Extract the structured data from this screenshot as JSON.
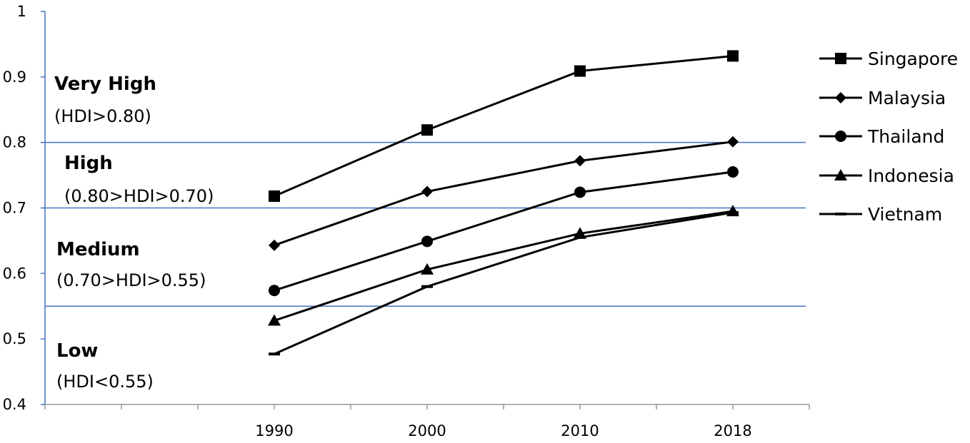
{
  "chart_data": {
    "type": "line",
    "categories": [
      "1990",
      "2000",
      "2010",
      "2018"
    ],
    "ylim": [
      0.4,
      1.0
    ],
    "y_ticks": [
      "0.4",
      "0.5",
      "0.6",
      "0.7",
      "0.8",
      "0.9",
      "1"
    ],
    "series": [
      {
        "name": "Singapore",
        "marker": "square",
        "values": [
          0.718,
          0.819,
          0.909,
          0.932
        ]
      },
      {
        "name": "Malaysia",
        "marker": "diamond",
        "values": [
          0.643,
          0.725,
          0.772,
          0.801
        ]
      },
      {
        "name": "Thailand",
        "marker": "circle",
        "values": [
          0.574,
          0.649,
          0.724,
          0.755
        ]
      },
      {
        "name": "Indonesia",
        "marker": "triangle",
        "values": [
          0.528,
          0.606,
          0.661,
          0.695
        ]
      },
      {
        "name": "Vietnam",
        "marker": "dash",
        "values": [
          0.477,
          0.58,
          0.655,
          0.693
        ]
      }
    ],
    "reference_lines": [
      0.8,
      0.7,
      0.55
    ],
    "bands": [
      {
        "title": "Very High",
        "range": "(HDI>0.80)"
      },
      {
        "title": "High",
        "range": "(0.80>HDI>0.70)"
      },
      {
        "title": "Medium",
        "range": "(0.70>HDI>0.55)"
      },
      {
        "title": "Low",
        "range": "(HDI<0.55)"
      }
    ],
    "legend_position": "right",
    "colors": {
      "series": "#000000",
      "axis": "#4472c4",
      "reference": "#4472c4"
    }
  }
}
